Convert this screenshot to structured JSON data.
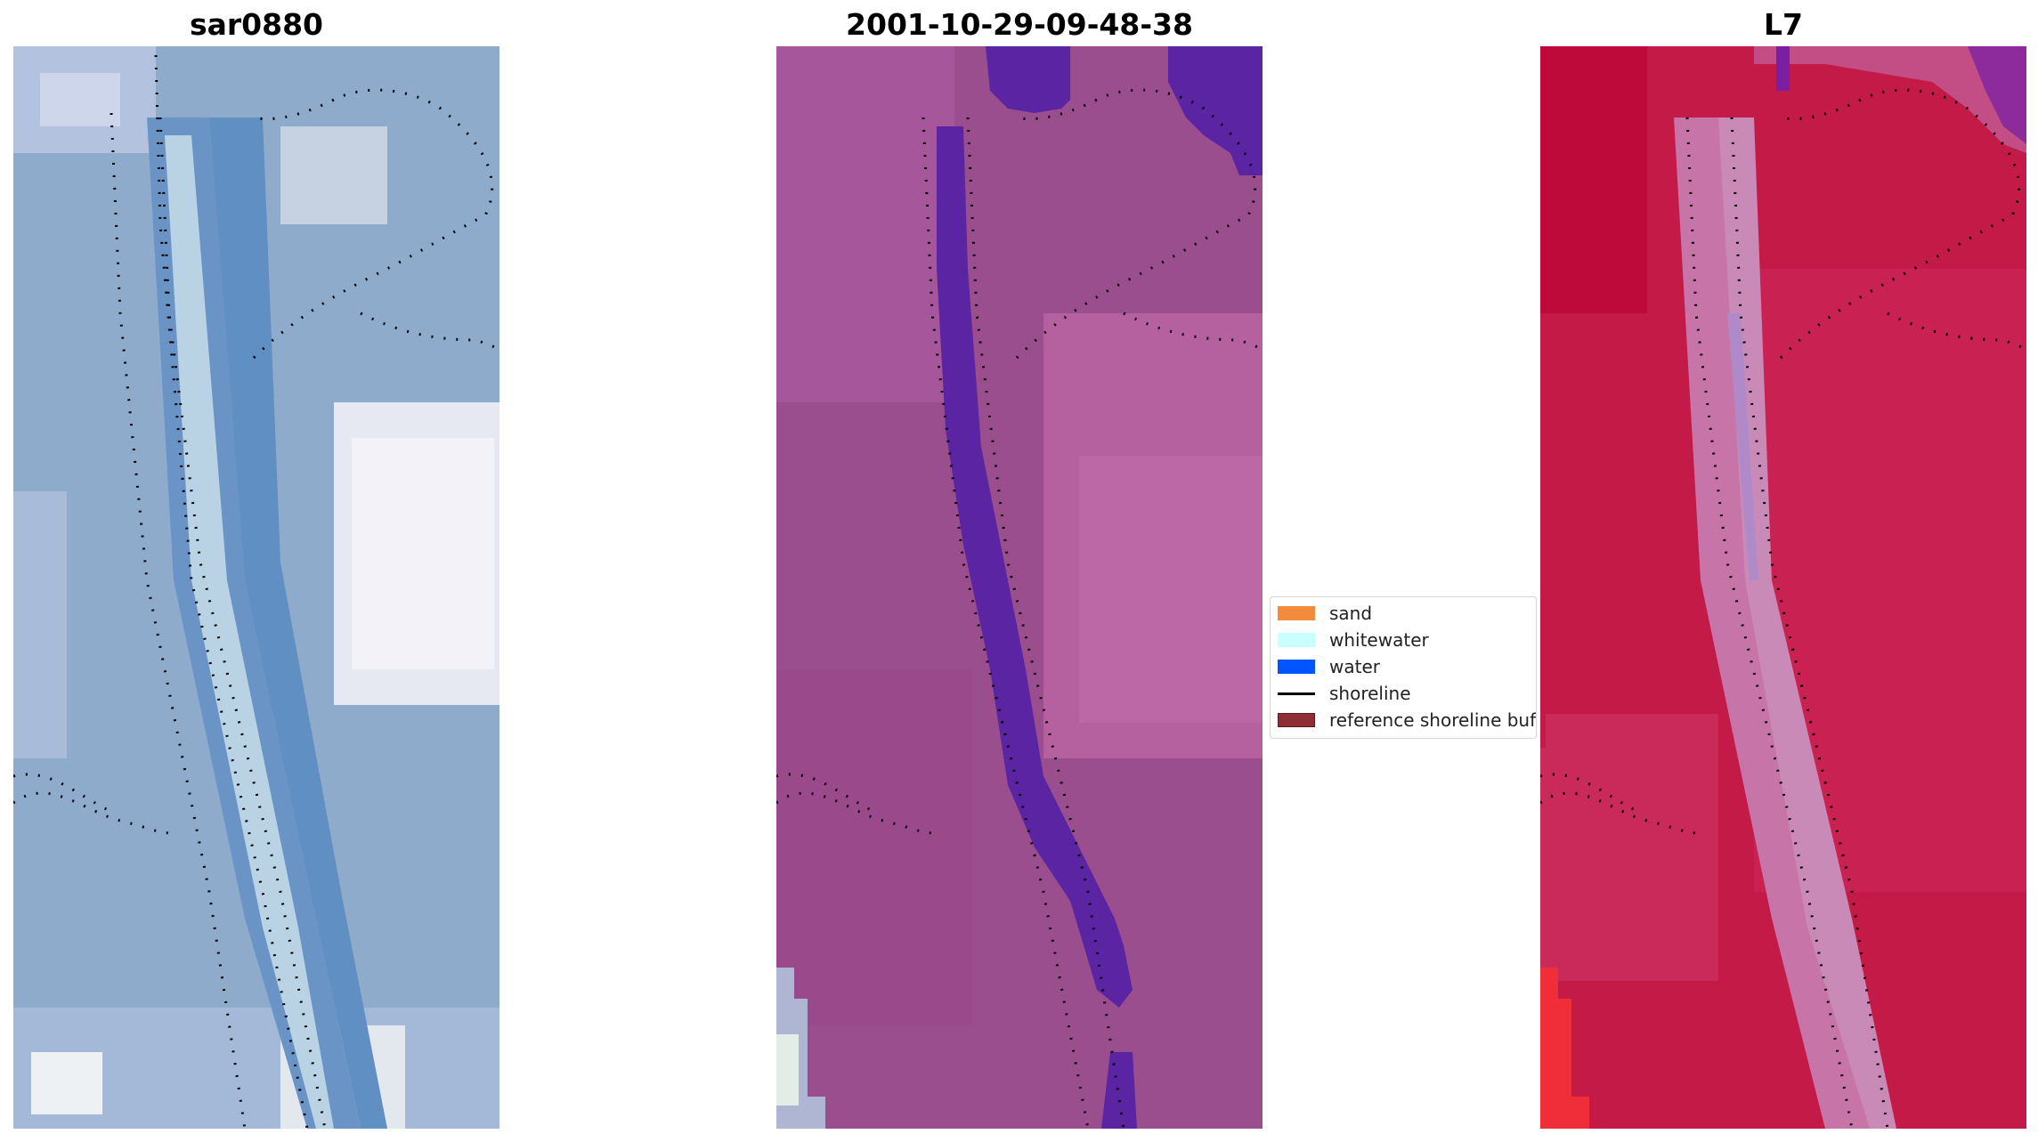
{
  "panels": [
    {
      "title": "sar0880",
      "kind": "true-color",
      "base": "#8aa8c9",
      "accent": "#5f8fc3",
      "light": "#dde6f2"
    },
    {
      "title": "2001-10-29-09-48-38",
      "kind": "classified",
      "base": "#9c4f90",
      "accent": "#b25e9e",
      "water": "#5a24a3"
    },
    {
      "title": "L7",
      "kind": "index",
      "base": "#c71b4a",
      "accent": "#d24a7c",
      "light": "#c78ab7"
    }
  ],
  "legend": {
    "items": [
      {
        "label": "sand",
        "type": "patch",
        "color": "#f28b3c"
      },
      {
        "label": "whitewater",
        "type": "patch",
        "color": "#c8ffff"
      },
      {
        "label": "water",
        "type": "patch",
        "color": "#0055ff"
      },
      {
        "label": "shoreline",
        "type": "line",
        "color": "#000000"
      },
      {
        "label": "reference shoreline buffer",
        "type": "patch",
        "color": "#8e2d33"
      }
    ]
  }
}
